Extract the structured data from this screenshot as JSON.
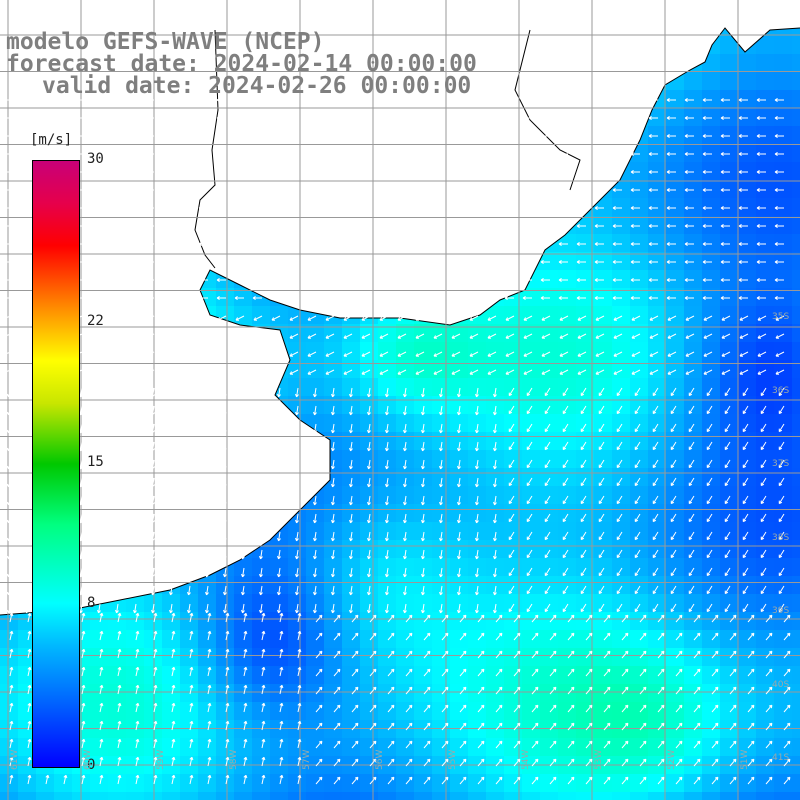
{
  "header": {
    "model": "modelo GEFS-WAVE (NCEP)",
    "forecast": "forecast date: 2024-02-14 00:00:00",
    "valid": "valid date: 2024-02-26 00:00:00"
  },
  "colorbar": {
    "unit": "[m/s]",
    "ticks": [
      {
        "value": 30,
        "label": "30"
      },
      {
        "value": 22,
        "label": "22"
      },
      {
        "value": 15,
        "label": "15"
      },
      {
        "value": 8,
        "label": "8"
      },
      {
        "value": 0,
        "label": "0"
      }
    ],
    "range": [
      0,
      30
    ]
  },
  "grid": {
    "lat_labels": [
      "35S",
      "36S",
      "37S",
      "38S",
      "39S",
      "40S",
      "41S"
    ],
    "lon_labels": [
      "61W",
      "60W",
      "59W",
      "58W",
      "57W",
      "56W",
      "55W",
      "54W",
      "53W",
      "52W",
      "51W"
    ]
  },
  "colors": {
    "land": "#ffffff",
    "grid": "#999999",
    "coast": "#000000",
    "arrow": "#ffffff"
  }
}
